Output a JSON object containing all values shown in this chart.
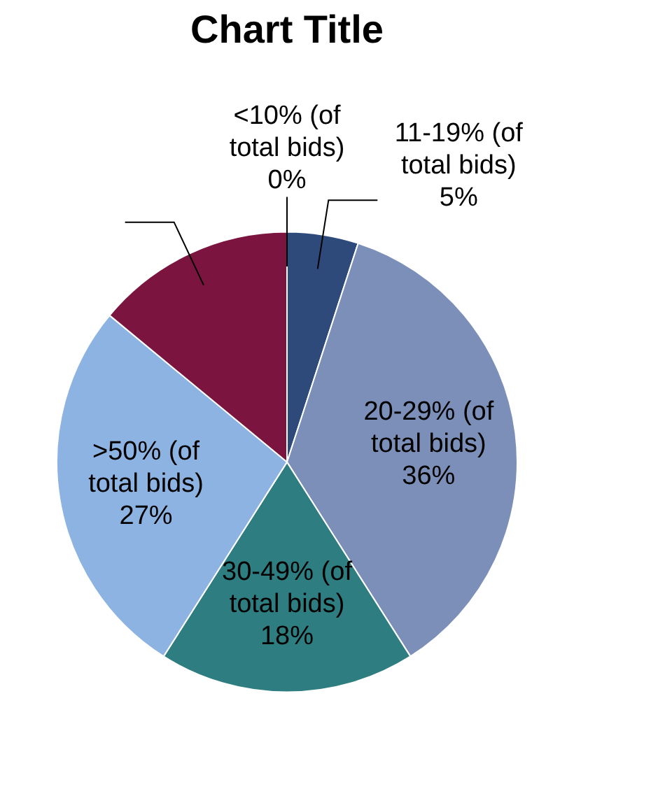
{
  "chart_data": {
    "type": "pie",
    "title": "Chart Title",
    "categories": [
      "<10% (of total bids)",
      "11-19% (of total bids)",
      "20-29% (of total bids)",
      "30-49% (of total bids)",
      ">50% (of total bids)",
      null
    ],
    "values": [
      0,
      5,
      36,
      18,
      27,
      14
    ],
    "colors": [
      "#1f3864",
      "#2e4a7a",
      "#7b8fb8",
      "#2e7d80",
      "#8db3e2",
      "#7b1540"
    ],
    "value_labels": [
      "0%",
      "5%",
      "36%",
      "18%",
      "27%",
      null
    ],
    "legend": false
  }
}
